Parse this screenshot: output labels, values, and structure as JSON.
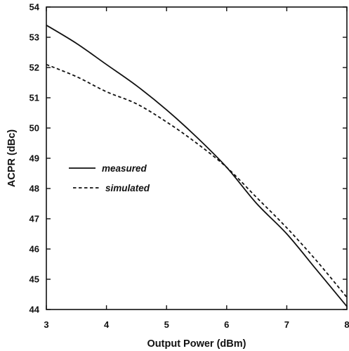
{
  "chart_data": {
    "type": "line",
    "title": "",
    "xlabel": "Output Power (dBm)",
    "ylabel": "ACPR (dBc)",
    "xlim": [
      3,
      8
    ],
    "ylim": [
      44,
      54
    ],
    "xticks": [
      3,
      4,
      5,
      6,
      7,
      8
    ],
    "yticks": [
      44,
      45,
      46,
      47,
      48,
      49,
      50,
      51,
      52,
      53,
      54
    ],
    "grid": false,
    "legend_position": "left-middle",
    "series": [
      {
        "name": "measured",
        "style": "solid",
        "color": "#111111",
        "x": [
          3,
          3.5,
          4,
          4.5,
          5,
          5.5,
          6,
          6.5,
          7,
          7.5,
          8
        ],
        "y": [
          53.4,
          52.8,
          52.1,
          51.4,
          50.6,
          49.7,
          48.7,
          47.5,
          46.5,
          45.3,
          44.1
        ]
      },
      {
        "name": "simulated",
        "style": "dashed",
        "color": "#111111",
        "x": [
          3,
          3.5,
          4,
          4.5,
          5,
          5.5,
          6,
          6.5,
          7,
          7.5,
          8
        ],
        "y": [
          52.1,
          51.7,
          51.2,
          50.8,
          50.2,
          49.5,
          48.7,
          47.7,
          46.7,
          45.6,
          44.4
        ]
      }
    ]
  }
}
